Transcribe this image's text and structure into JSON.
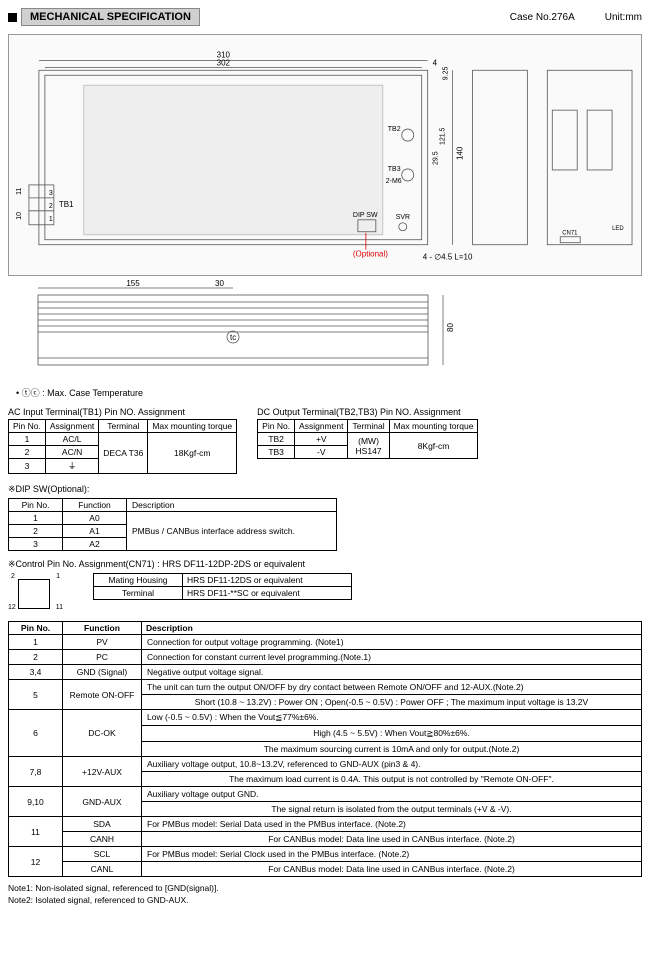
{
  "header": {
    "title": "MECHANICAL SPECIFICATION",
    "case": "Case No.276A",
    "unit": "Unit:mm"
  },
  "dims": {
    "w_outer": "310",
    "w_inner": "302",
    "h_outer": "140",
    "h_mid": "121.5",
    "h_29": "29.5",
    "h_9": "9.25",
    "gap4": "4",
    "l_155": "155",
    "l_30": "30",
    "h_80": "80",
    "h_11": "11",
    "h_10": "10",
    "mount": "4 - ∅4.5 L=10"
  },
  "labels": {
    "tb1": "TB1",
    "tb2": "TB2",
    "tb3": "TB3",
    "m6": "2-M6",
    "dip": "DIP SW",
    "svr": "SVR",
    "opt": "(Optional)",
    "cn71": "CN71",
    "led": "LED",
    "ground": "⏚",
    "p1": "1",
    "p2": "2",
    "p3": "3",
    "p11": "11",
    "p12": "12"
  },
  "tc_note": "• ⓣⓒ : Max. Case Temperature",
  "tc_sym": "tc",
  "ac_table": {
    "title": "AC Input Terminal(TB1) Pin NO. Assignment",
    "headers": [
      "Pin No.",
      "Assignment",
      "Terminal",
      "Max mounting torque"
    ],
    "rows": [
      [
        "1",
        "AC/L"
      ],
      [
        "2",
        "AC/N"
      ],
      [
        "3",
        "⏚"
      ]
    ],
    "terminal": "DECA T36",
    "torque": "18Kgf-cm"
  },
  "dc_table": {
    "title": "DC Output Terminal(TB2,TB3) Pin NO. Assignment",
    "headers": [
      "Pin No.",
      "Assignment",
      "Terminal",
      "Max mounting torque"
    ],
    "rows": [
      [
        "TB2",
        "+V"
      ],
      [
        "TB3",
        "-V"
      ]
    ],
    "terminal": "(MW)\nHS147",
    "torque": "8Kgf-cm"
  },
  "dip_table": {
    "title": "※DIP SW(Optional):",
    "headers": [
      "Pin No.",
      "Function",
      "Description"
    ],
    "rows": [
      [
        "1",
        "A0"
      ],
      [
        "2",
        "A1"
      ],
      [
        "3",
        "A2"
      ]
    ],
    "desc": "PMBus / CANBus interface address switch."
  },
  "ctrl": {
    "title": "※Control Pin No. Assignment(CN71) : HRS DF11-12DP-2DS or equivalent",
    "mating_h": "Mating Housing",
    "mating_v": "HRS DF11-12DS or equivalent",
    "term_h": "Terminal",
    "term_v": "HRS DF11-**SC or equivalent"
  },
  "main_table": {
    "headers": [
      "Pin No.",
      "Function",
      "Description"
    ],
    "rows": [
      {
        "pin": "1",
        "func": "PV",
        "desc": [
          "Connection for output voltage programming. (Note1)"
        ]
      },
      {
        "pin": "2",
        "func": "PC",
        "desc": [
          "Connection for constant current level programming.(Note.1)"
        ]
      },
      {
        "pin": "3,4",
        "func": "GND (Signal)",
        "desc": [
          "Negative output voltage signal."
        ]
      },
      {
        "pin": "5",
        "func": "Remote ON-OFF",
        "desc": [
          "The unit can turn the output ON/OFF by dry contact between Remote ON/OFF and 12-AUX.(Note.2)",
          "Short (10.8 ~ 13.2V) : Power ON ; Open(-0.5 ~ 0.5V) : Power OFF ; The maximum input voltage is 13.2V"
        ]
      },
      {
        "pin": "6",
        "func": "DC-OK",
        "desc": [
          "Low (-0.5 ~ 0.5V) : When the Vout≦77%±6%.",
          "High (4.5 ~ 5.5V) : When Vout≧80%±6%.",
          "The maximum sourcing current is 10mA and only for output.(Note.2)"
        ]
      },
      {
        "pin": "7,8",
        "func": "+12V-AUX",
        "desc": [
          "Auxiliary voltage output, 10.8~13.2V, referenced to GND-AUX (pin3 & 4).",
          "The maximum load current is 0.4A. This output is not controlled by \"Remote ON-OFF\"."
        ]
      },
      {
        "pin": "9,10",
        "func": "GND-AUX",
        "desc": [
          "Auxiliary voltage output GND.",
          "The signal return is isolated from the output terminals (+V & -V)."
        ]
      },
      {
        "pin": "11",
        "func": "SDA",
        "desc": [
          "For PMBus model: Serial Data used in the PMBus interface. (Note.2)"
        ],
        "func2": "CANH",
        "desc2": [
          "For CANBus model: Data line used in CANBus interface. (Note.2)"
        ]
      },
      {
        "pin": "12",
        "func": "SCL",
        "desc": [
          "For PMBus model: Serial Clock used in the PMBus interface. (Note.2)"
        ],
        "func2": "CANL",
        "desc2": [
          "For CANBus model: Data line used in CANBus interface. (Note.2)"
        ]
      }
    ]
  },
  "notes": {
    "n1": "Note1: Non-isolated signal, referenced to [GND(signal)].",
    "n2": "Note2: Isolated signal, referenced to GND-AUX."
  },
  "colors": {
    "line": "#666",
    "dim": "#444",
    "red": "#d00"
  }
}
